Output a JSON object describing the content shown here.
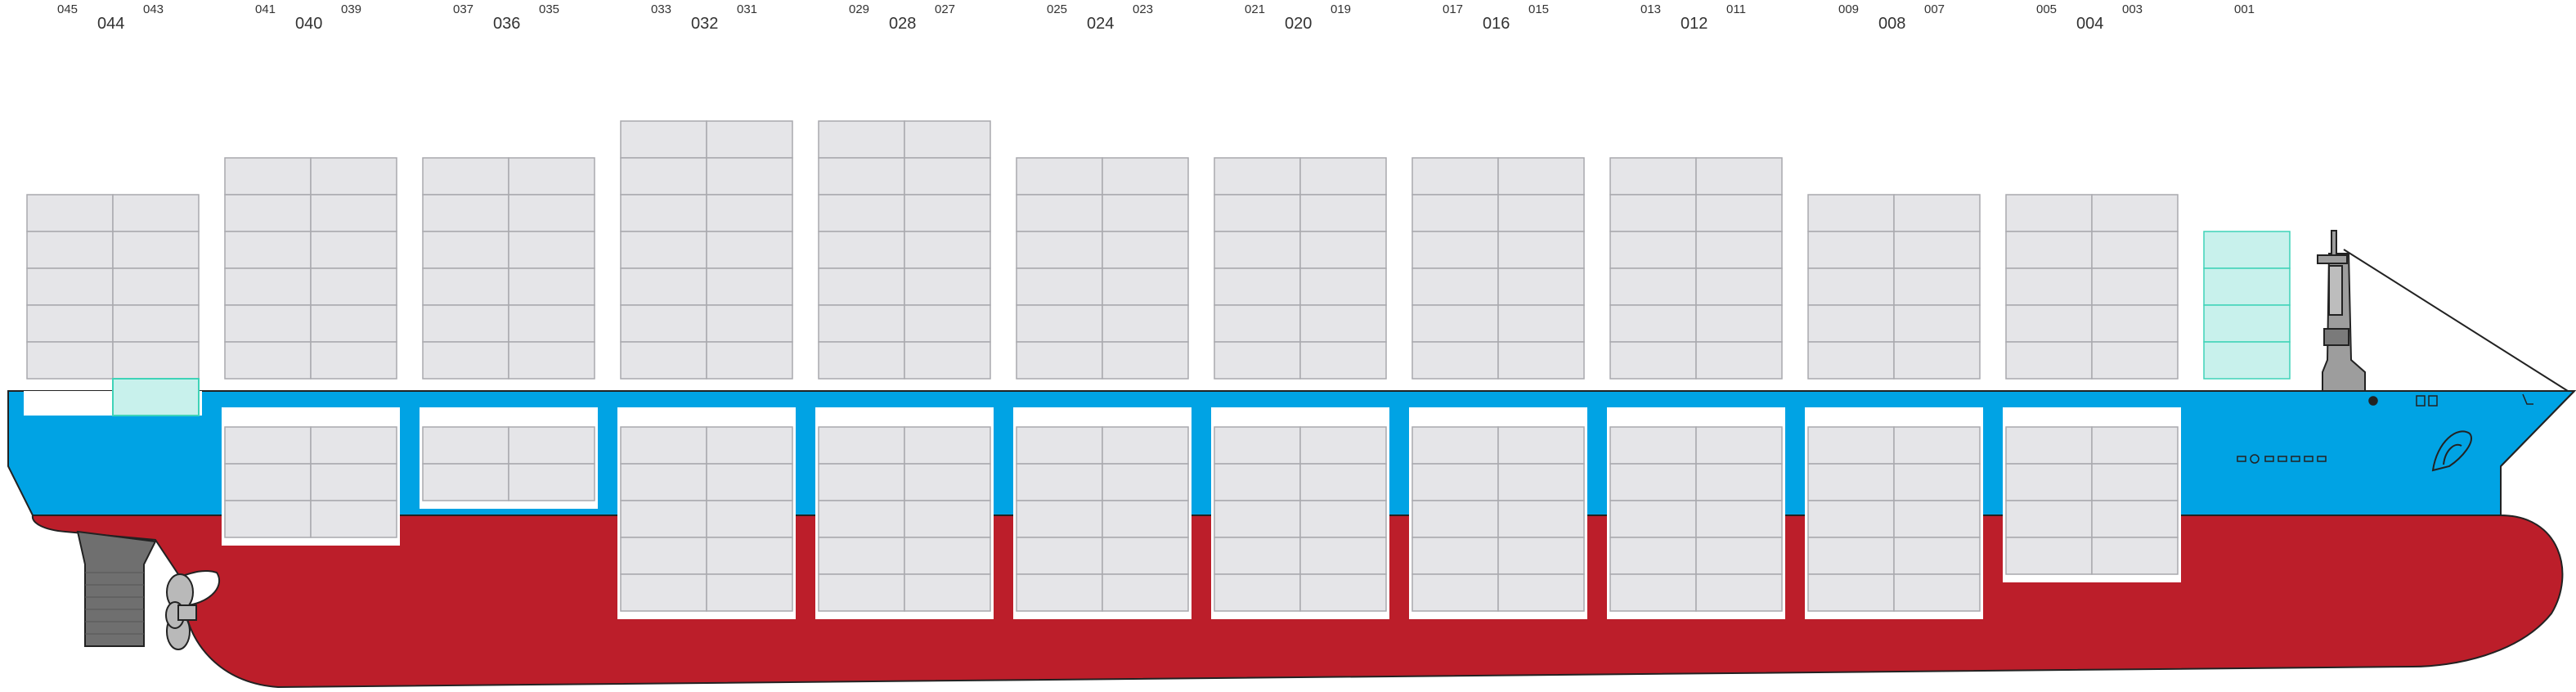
{
  "colors": {
    "hull_red": "#bc1e2a",
    "hull_blue": "#00a3e4",
    "container_fill": "#e5e5e8",
    "container_stroke": "#a9a9ae",
    "hatch_white": "#ffffff",
    "highlight_fill": "#c8f1ec",
    "highlight_stroke": "#3fd3b8",
    "machinery_grey": "#6f6f6f",
    "outline": "#222222"
  },
  "bays": [
    {
      "main": "044",
      "aft": "045",
      "fwd": "043",
      "deck_tiers": 5,
      "hold_tiers": 0,
      "highlight": {
        "col": 1,
        "row": 5
      }
    },
    {
      "main": "040",
      "aft": "041",
      "fwd": "039",
      "deck_tiers": 6,
      "hold_tiers": 3
    },
    {
      "main": "036",
      "aft": "037",
      "fwd": "035",
      "deck_tiers": 6,
      "hold_tiers": 2
    },
    {
      "main": "032",
      "aft": "033",
      "fwd": "031",
      "deck_tiers": 7,
      "hold_tiers": 5
    },
    {
      "main": "028",
      "aft": "029",
      "fwd": "027",
      "deck_tiers": 7,
      "hold_tiers": 5
    },
    {
      "main": "024",
      "aft": "025",
      "fwd": "023",
      "deck_tiers": 6,
      "hold_tiers": 5
    },
    {
      "main": "020",
      "aft": "021",
      "fwd": "019",
      "deck_tiers": 6,
      "hold_tiers": 5
    },
    {
      "main": "016",
      "aft": "017",
      "fwd": "015",
      "deck_tiers": 6,
      "hold_tiers": 5
    },
    {
      "main": "012",
      "aft": "013",
      "fwd": "011",
      "deck_tiers": 6,
      "hold_tiers": 5
    },
    {
      "main": "008",
      "aft": "009",
      "fwd": "007",
      "deck_tiers": 5,
      "hold_tiers": 5
    },
    {
      "main": "004",
      "aft": "005",
      "fwd": "003",
      "deck_tiers": 5,
      "hold_tiers": 4
    }
  ],
  "bow_bay": {
    "label": "001",
    "deck_tiers": 4,
    "highlighted": true
  }
}
